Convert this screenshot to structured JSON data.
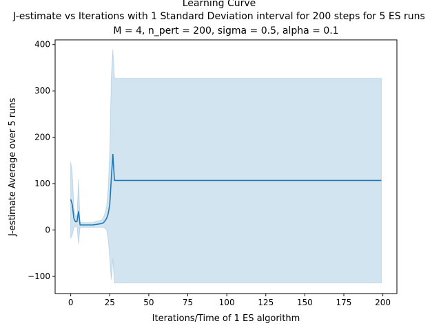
{
  "chart_data": {
    "type": "line",
    "title_lines": [
      "Learning Curve",
      "J-estimate vs Iterations with 1 Standard Deviation interval for 200 steps for 5 ES runs",
      "M = 4, n_pert = 200, sigma = 0.5, alpha = 0.1"
    ],
    "xlabel": "Iterations/Time of 1 ES algorithm",
    "ylabel": "J-estimate Average over 5 runs",
    "xlim": [
      -10,
      209
    ],
    "ylim": [
      -137,
      410
    ],
    "xticks": [
      0,
      25,
      50,
      75,
      100,
      125,
      150,
      175,
      200
    ],
    "yticks": [
      -100,
      0,
      100,
      200,
      300,
      400
    ],
    "ytick_labels": [
      "−100",
      "0",
      "100",
      "200",
      "300",
      "400"
    ],
    "grid": false,
    "line_color": "#1f77b4",
    "band_color": "#1f77b4",
    "series": [
      {
        "x": [
          0,
          1,
          2,
          3,
          4,
          5,
          6,
          8,
          10,
          12,
          14,
          16,
          18,
          20,
          21,
          22,
          23,
          24,
          25,
          26,
          27,
          28,
          40,
          60,
          80,
          100,
          120,
          140,
          160,
          180,
          199
        ],
        "y": [
          66,
          55,
          25,
          18,
          18,
          40,
          11,
          11,
          11,
          11,
          11,
          12,
          13,
          14,
          16,
          20,
          25,
          35,
          55,
          110,
          163,
          107,
          107,
          107,
          107,
          107,
          107,
          107,
          107,
          107,
          107
        ],
        "lower": [
          -18,
          -10,
          5,
          8,
          8,
          -30,
          6,
          6,
          6,
          6,
          6,
          6,
          6,
          6,
          6,
          4,
          0,
          -20,
          -60,
          -108,
          -62,
          -114,
          -114,
          -114,
          -114,
          -114,
          -114,
          -114,
          -114,
          -114,
          -114
        ],
        "upper": [
          147,
          122,
          50,
          30,
          30,
          110,
          16,
          16,
          16,
          16,
          16,
          18,
          20,
          22,
          27,
          37,
          50,
          90,
          170,
          330,
          390,
          327,
          327,
          327,
          327,
          327,
          327,
          327,
          327,
          327,
          327
        ]
      }
    ]
  }
}
